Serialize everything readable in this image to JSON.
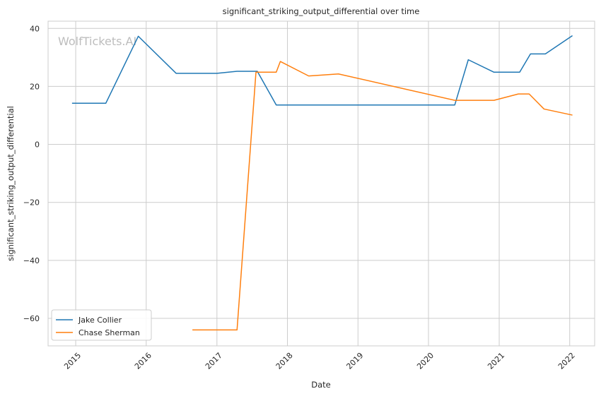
{
  "chart_data": {
    "type": "line",
    "title": "significant_striking_output_differential over time",
    "xlabel": "Date",
    "ylabel": "significant_striking_output_differential",
    "watermark": "WolfTickets.AI",
    "x_ticks": [
      "2015",
      "2016",
      "2017",
      "2018",
      "2019",
      "2020",
      "2021",
      "2022"
    ],
    "y_ticks": [
      "40",
      "20",
      "0",
      "−20",
      "−40",
      "−60"
    ],
    "y_tick_values": [
      40,
      20,
      0,
      -20,
      -40,
      -60
    ],
    "x_tick_values": [
      "2015-01-01",
      "2016-01-01",
      "2017-01-01",
      "2018-01-01",
      "2019-01-01",
      "2020-01-01",
      "2021-01-01",
      "2022-01-01"
    ],
    "xlim": [
      "2014-08-11",
      "2022-05-10"
    ],
    "ylim": [
      -69.5,
      42.5
    ],
    "grid": true,
    "legend_position": "lower-left",
    "series": [
      {
        "name": "Jake Collier",
        "color": "#1f77b4",
        "points": [
          [
            "2014-12-13",
            14.2
          ],
          [
            "2015-06-06",
            14.2
          ],
          [
            "2015-11-21",
            37.3
          ],
          [
            "2016-06-04",
            24.5
          ],
          [
            "2017-01-01",
            24.5
          ],
          [
            "2017-04-15",
            25.2
          ],
          [
            "2017-07-29",
            25.2
          ],
          [
            "2017-11-04",
            13.6
          ],
          [
            "2020-05-16",
            13.6
          ],
          [
            "2020-07-25",
            29.2
          ],
          [
            "2020-12-05",
            24.9
          ],
          [
            "2021-04-17",
            24.9
          ],
          [
            "2021-06-12",
            31.2
          ],
          [
            "2021-08-28",
            31.2
          ],
          [
            "2022-01-15",
            37.5
          ]
        ]
      },
      {
        "name": "Chase Sherman",
        "color": "#ff7f0e",
        "points": [
          [
            "2016-08-27",
            -64.0
          ],
          [
            "2017-04-15",
            -64.0
          ],
          [
            "2017-07-22",
            24.9
          ],
          [
            "2017-11-04",
            24.9
          ],
          [
            "2017-11-25",
            28.6
          ],
          [
            "2018-04-21",
            23.6
          ],
          [
            "2018-09-22",
            24.3
          ],
          [
            "2020-05-16",
            15.2
          ],
          [
            "2020-12-05",
            15.2
          ],
          [
            "2021-04-10",
            17.4
          ],
          [
            "2021-06-05",
            17.4
          ],
          [
            "2021-08-21",
            12.2
          ],
          [
            "2022-01-15",
            10.1
          ]
        ]
      }
    ]
  }
}
